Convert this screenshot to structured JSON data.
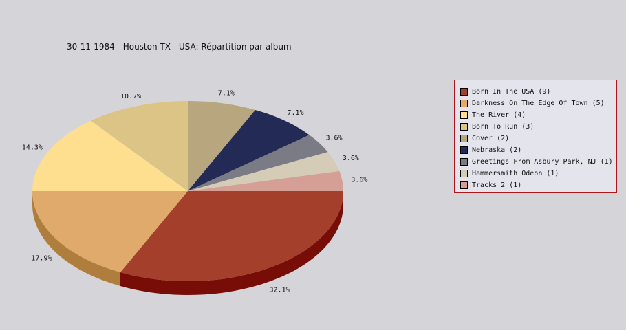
{
  "chart_data": {
    "type": "pie",
    "title": "30-11-1984 - Houston TX - USA:  Répartition par album",
    "legend_position": "right",
    "slices": [
      {
        "label": "Born In The USA (9)",
        "value": 9,
        "percent_label": "32.1%",
        "color": "#a33f2a",
        "side_color": "#780d08"
      },
      {
        "label": "Darkness On The Edge Of Town (5)",
        "value": 5,
        "percent_label": "17.9%",
        "color": "#e0aa6c",
        "side_color": "#b07e3c"
      },
      {
        "label": "The River (4)",
        "value": 4,
        "percent_label": "14.3%",
        "color": "#fedf8f",
        "side_color": "#c9ad60"
      },
      {
        "label": "Born To Run (3)",
        "value": 3,
        "percent_label": "10.7%",
        "color": "#dcc487",
        "side_color": "#a99558"
      },
      {
        "label": "Cover (2)",
        "value": 2,
        "percent_label": "7.1%",
        "color": "#b8a67f",
        "side_color": "#8a7a56"
      },
      {
        "label": "Nebraska (2)",
        "value": 2,
        "percent_label": "7.1%",
        "color": "#232a55",
        "side_color": "#141833"
      },
      {
        "label": "Greetings From Asbury Park, NJ (1)",
        "value": 1,
        "percent_label": "3.6%",
        "color": "#7b7b86",
        "side_color": "#55555d"
      },
      {
        "label": "Hammersmith Odeon  (1)",
        "value": 1,
        "percent_label": "3.6%",
        "color": "#d5ccb8",
        "side_color": "#a59d8b"
      },
      {
        "label": "Tracks 2 (1)",
        "value": 1,
        "percent_label": "3.6%",
        "color": "#d59f95",
        "side_color": "#a8766d"
      }
    ]
  }
}
